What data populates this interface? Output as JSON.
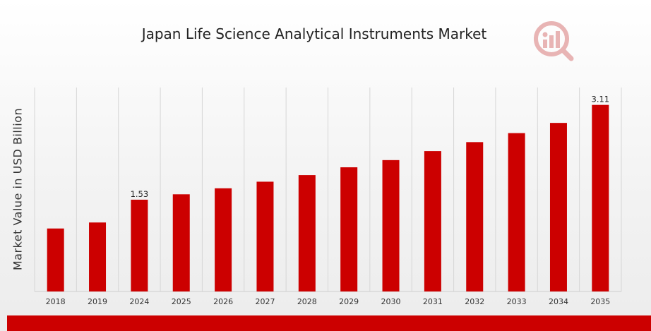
{
  "chart_data": {
    "type": "bar",
    "title": "Japan Life Science Analytical Instruments Market",
    "xlabel": "",
    "ylabel": "Market Value in USD Billion",
    "categories": [
      "2018",
      "2019",
      "2024",
      "2025",
      "2026",
      "2027",
      "2028",
      "2029",
      "2030",
      "2031",
      "2032",
      "2033",
      "2034",
      "2035"
    ],
    "values": [
      1.05,
      1.15,
      1.53,
      1.62,
      1.72,
      1.83,
      1.94,
      2.07,
      2.19,
      2.34,
      2.49,
      2.64,
      2.81,
      3.11
    ],
    "data_labels": {
      "2024": "1.53",
      "2035": "3.11"
    },
    "ylim": [
      0,
      3.4
    ],
    "grid": "vertical",
    "legend": "none",
    "bar_color": "#cc0000"
  },
  "brand": {
    "accent_color": "#cc0000",
    "logo_icon": "market-research-logo-icon"
  }
}
